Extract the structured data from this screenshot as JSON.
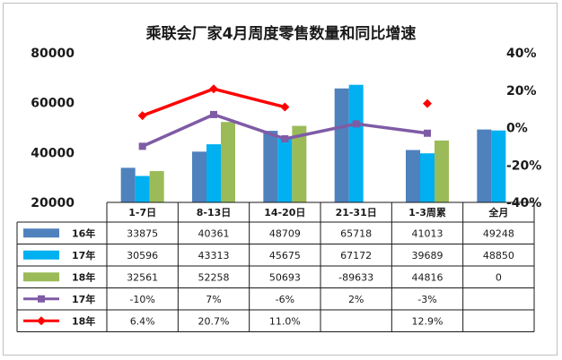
{
  "chart_data": {
    "type": "bar",
    "title": "乘联会厂家4月周度零售数量和同比增速",
    "categories": [
      "1-7日",
      "8-13日",
      "14-20日",
      "21-31日",
      "1-3周累",
      "全月"
    ],
    "y_left": {
      "min": 20000,
      "max": 80000,
      "ticks": [
        "20000",
        "40000",
        "60000",
        "80000"
      ]
    },
    "y_right": {
      "min": -40,
      "max": 40,
      "ticks": [
        "-40%",
        "-20%",
        "0%",
        "20%",
        "40%"
      ]
    },
    "bar_series": [
      {
        "name": "16年",
        "color": "#4f81bd",
        "values": [
          33875,
          40361,
          48709,
          65718,
          41013,
          49248
        ],
        "labels": [
          "33875",
          "40361",
          "48709",
          "65718",
          "41013",
          "49248"
        ]
      },
      {
        "name": "17年",
        "color": "#00b0f0",
        "values": [
          30596,
          43313,
          45675,
          67172,
          39689,
          48850
        ],
        "labels": [
          "30596",
          "43313",
          "45675",
          "67172",
          "39689",
          "48850"
        ]
      },
      {
        "name": "18年",
        "color": "#9bbb59",
        "values": [
          32561,
          52258,
          50693,
          -89633,
          44816,
          0
        ],
        "labels": [
          "32561",
          "52258",
          "50693",
          "-89633",
          "44816",
          "0"
        ]
      }
    ],
    "line_series": [
      {
        "name": "17年",
        "color": "#7f5ba6",
        "marker": "square",
        "values": [
          -10,
          7,
          -6,
          2,
          -3,
          null
        ],
        "labels": [
          "-10%",
          "7%",
          "-6%",
          "2%",
          "-3%",
          ""
        ]
      },
      {
        "name": "18年",
        "color": "#ff0000",
        "marker": "diamond",
        "values": [
          6.4,
          20.7,
          11.0,
          null,
          12.9,
          null
        ],
        "labels": [
          "6.4%",
          "20.7%",
          "11.0%",
          "",
          "12.9%",
          ""
        ]
      }
    ],
    "legend": "data-table-rows",
    "grid": false
  }
}
